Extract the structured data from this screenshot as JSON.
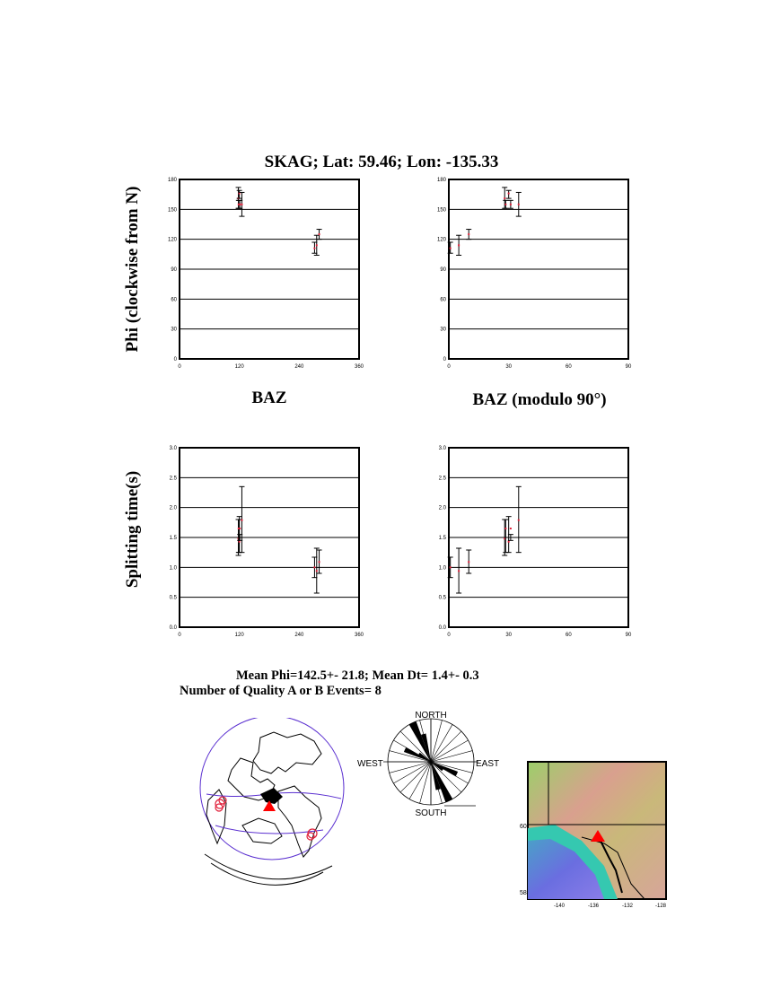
{
  "title": "SKAG; Lat:  59.46;  Lon: -135.33",
  "stats": {
    "line1": "Mean Phi=142.5+- 21.8; Mean Dt=  1.4+-  0.3",
    "line2": "Number of Quality A  or B Events=  8"
  },
  "colors": {
    "error_bar": "#000000",
    "point": "#e0203a",
    "grid": "#000000",
    "globe_outline": "#5a2fd0",
    "station": "#ff0000"
  },
  "chart_data": [
    {
      "type": "scatter",
      "id": "phi-baz",
      "xlabel": "BAZ",
      "ylabel": "Phi (clockwise from N)",
      "xlim": [
        0,
        360
      ],
      "ylim": [
        0,
        180
      ],
      "xticks": [
        "0",
        "120",
        "240",
        "360"
      ],
      "yticks": [
        "0",
        "30",
        "60",
        "90",
        "120",
        "150",
        "180"
      ],
      "grid": "horizontal",
      "points": [
        {
          "x": 270.75,
          "y": 111,
          "lo": 106,
          "hi": 117
        },
        {
          "x": 275,
          "y": 114,
          "lo": 104,
          "hi": 124
        },
        {
          "x": 280,
          "y": 125,
          "lo": 120,
          "hi": 130
        },
        {
          "x": 118,
          "y": 161,
          "lo": 151,
          "hi": 172
        },
        {
          "x": 118.5,
          "y": 155,
          "lo": 151,
          "hi": 159
        },
        {
          "x": 120,
          "y": 166,
          "lo": 161,
          "hi": 169
        },
        {
          "x": 121,
          "y": 155,
          "lo": 151,
          "hi": 159
        },
        {
          "x": 125,
          "y": 155,
          "lo": 143,
          "hi": 167
        }
      ]
    },
    {
      "type": "scatter",
      "id": "phi-baz-mod90",
      "xlabel": "BAZ (modulo 90°)",
      "ylabel": "",
      "xlim": [
        0,
        90
      ],
      "ylim": [
        0,
        180
      ],
      "xticks": [
        "0",
        "30",
        "60",
        "90"
      ],
      "yticks": [
        "0",
        "30",
        "60",
        "90",
        "120",
        "150",
        "180"
      ],
      "grid": "horizontal",
      "points": [
        {
          "x": 0.75,
          "y": 111,
          "lo": 106,
          "hi": 117
        },
        {
          "x": 5,
          "y": 114,
          "lo": 104,
          "hi": 124
        },
        {
          "x": 10,
          "y": 125,
          "lo": 120,
          "hi": 130
        },
        {
          "x": 28,
          "y": 161,
          "lo": 151,
          "hi": 172
        },
        {
          "x": 28.5,
          "y": 155,
          "lo": 151,
          "hi": 159
        },
        {
          "x": 30,
          "y": 166,
          "lo": 161,
          "hi": 169
        },
        {
          "x": 31,
          "y": 155,
          "lo": 151,
          "hi": 159
        },
        {
          "x": 35,
          "y": 155,
          "lo": 143,
          "hi": 167
        }
      ]
    },
    {
      "type": "scatter",
      "id": "dt-baz",
      "xlabel": "",
      "ylabel": "Splitting time(s)",
      "xlim": [
        0,
        360
      ],
      "ylim": [
        0,
        3.0
      ],
      "xticks": [
        "0",
        "120",
        "240",
        "360"
      ],
      "yticks": [
        "0.0",
        "0.5",
        "1.0",
        "1.5",
        "2.0",
        "2.5",
        "3.0"
      ],
      "grid": "horizontal",
      "points": [
        {
          "x": 270.75,
          "y": 1.0,
          "lo": 0.83,
          "hi": 1.17
        },
        {
          "x": 275,
          "y": 0.94,
          "lo": 0.57,
          "hi": 1.32
        },
        {
          "x": 280,
          "y": 1.09,
          "lo": 0.9,
          "hi": 1.29
        },
        {
          "x": 118,
          "y": 1.48,
          "lo": 1.2,
          "hi": 1.8
        },
        {
          "x": 118.5,
          "y": 1.65,
          "lo": 1.25,
          "hi": 1.8
        },
        {
          "x": 120,
          "y": 1.43,
          "lo": 1.25,
          "hi": 1.85
        },
        {
          "x": 121,
          "y": 1.65,
          "lo": 1.45,
          "hi": 1.55
        },
        {
          "x": 125,
          "y": 1.79,
          "lo": 1.25,
          "hi": 2.35
        }
      ]
    },
    {
      "type": "scatter",
      "id": "dt-baz-mod90",
      "xlabel": "",
      "ylabel": "",
      "xlim": [
        0,
        90
      ],
      "ylim": [
        0,
        3.0
      ],
      "xticks": [
        "0",
        "30",
        "60",
        "90"
      ],
      "yticks": [
        "0.0",
        "0.5",
        "1.0",
        "1.5",
        "2.0",
        "2.5",
        "3.0"
      ],
      "grid": "horizontal",
      "points": [
        {
          "x": 0.75,
          "y": 1.0,
          "lo": 0.83,
          "hi": 1.17
        },
        {
          "x": 5,
          "y": 0.94,
          "lo": 0.57,
          "hi": 1.32
        },
        {
          "x": 10,
          "y": 1.09,
          "lo": 0.9,
          "hi": 1.29
        },
        {
          "x": 28,
          "y": 1.48,
          "lo": 1.2,
          "hi": 1.8
        },
        {
          "x": 28.5,
          "y": 1.65,
          "lo": 1.25,
          "hi": 1.8
        },
        {
          "x": 30,
          "y": 1.43,
          "lo": 1.25,
          "hi": 1.85
        },
        {
          "x": 31,
          "y": 1.65,
          "lo": 1.45,
          "hi": 1.55
        },
        {
          "x": 35,
          "y": 1.79,
          "lo": 1.25,
          "hi": 2.35
        }
      ]
    }
  ],
  "rose": {
    "labels": {
      "north": "NORTH",
      "south": "SOUTH",
      "east": "EAST",
      "west": "WEST"
    },
    "phi_values": [
      111,
      114,
      125,
      161,
      155,
      166,
      155,
      155
    ]
  },
  "location_map": {
    "lat_ticks": [
      "60",
      "58"
    ],
    "lon_ticks": [
      "-140",
      "-136",
      "-132",
      "-128"
    ]
  }
}
